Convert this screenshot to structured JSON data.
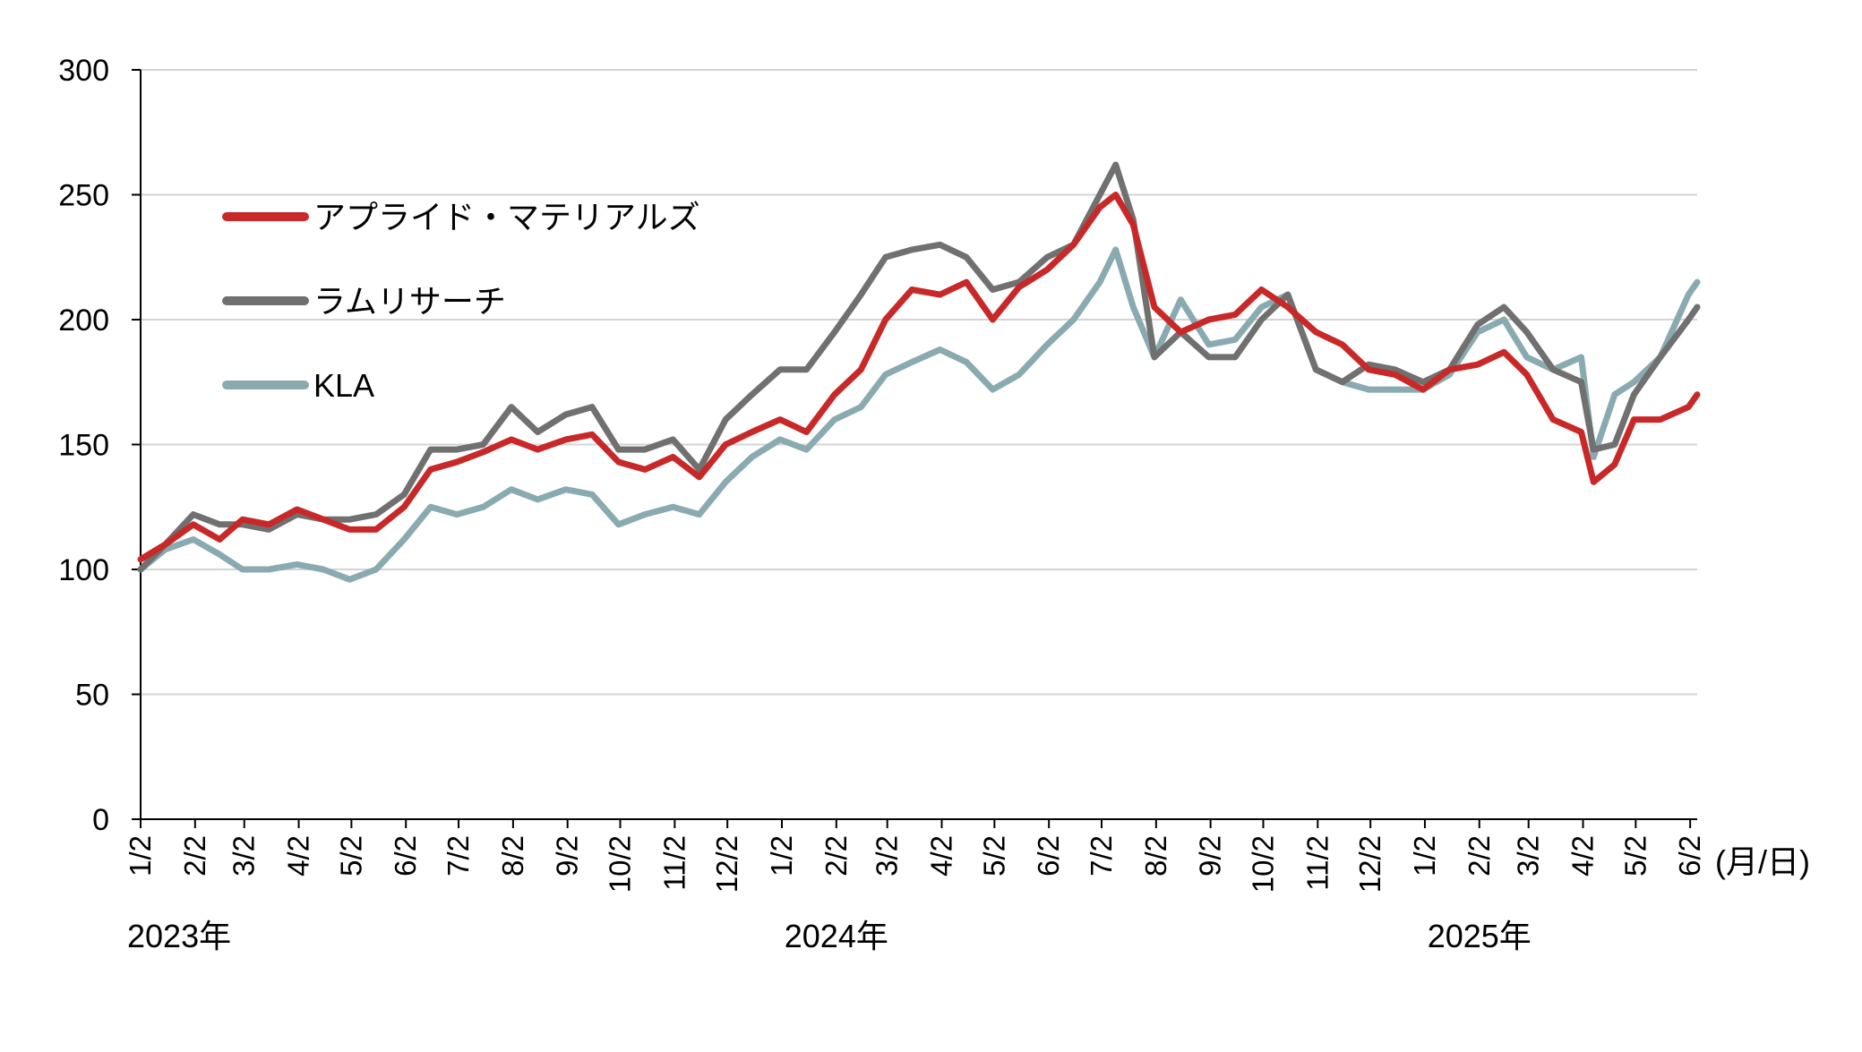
{
  "chart_data": {
    "type": "line",
    "title": "",
    "xlabel": "",
    "ylabel": "",
    "ylim": [
      0,
      300
    ],
    "yticks": [
      0,
      50,
      100,
      150,
      200,
      250,
      300
    ],
    "x_unit_label": "(月/日)",
    "grid": "horizontal",
    "legend_position": "top-left",
    "x_tick_labels": [
      "1/2",
      "2/2",
      "3/2",
      "4/2",
      "5/2",
      "6/2",
      "7/2",
      "8/2",
      "9/2",
      "10/2",
      "11/2",
      "12/2",
      "1/2",
      "2/2",
      "3/2",
      "4/2",
      "5/2",
      "6/2",
      "7/2",
      "8/2",
      "9/2",
      "10/2",
      "11/2",
      "12/2",
      "1/2",
      "2/2",
      "3/2",
      "4/2",
      "5/2",
      "6/2"
    ],
    "x_tick_dates": [
      "2023-01-02",
      "2023-02-02",
      "2023-03-02",
      "2023-04-02",
      "2023-05-02",
      "2023-06-02",
      "2023-07-02",
      "2023-08-02",
      "2023-09-02",
      "2023-10-02",
      "2023-11-02",
      "2023-12-02",
      "2024-01-02",
      "2024-02-02",
      "2024-03-02",
      "2024-04-02",
      "2024-05-02",
      "2024-06-02",
      "2024-07-02",
      "2024-08-02",
      "2024-09-02",
      "2024-10-02",
      "2024-11-02",
      "2024-12-02",
      "2025-01-02",
      "2025-02-02",
      "2025-03-02",
      "2025-04-02",
      "2025-05-02",
      "2025-06-02"
    ],
    "year_labels": [
      {
        "label": "2023年",
        "date": "2023-01-02"
      },
      {
        "label": "2024年",
        "date": "2024-02-02"
      },
      {
        "label": "2025年",
        "date": "2025-02-02"
      }
    ],
    "x": [
      "2023-01-02",
      "2023-01-16",
      "2023-02-01",
      "2023-02-16",
      "2023-03-01",
      "2023-03-16",
      "2023-04-01",
      "2023-04-16",
      "2023-05-01",
      "2023-05-16",
      "2023-06-01",
      "2023-06-16",
      "2023-07-01",
      "2023-07-16",
      "2023-08-01",
      "2023-08-16",
      "2023-09-01",
      "2023-09-16",
      "2023-10-01",
      "2023-10-16",
      "2023-11-01",
      "2023-11-16",
      "2023-12-01",
      "2023-12-16",
      "2024-01-01",
      "2024-01-16",
      "2024-02-01",
      "2024-02-16",
      "2024-03-01",
      "2024-03-16",
      "2024-04-01",
      "2024-04-16",
      "2024-05-01",
      "2024-05-16",
      "2024-06-01",
      "2024-06-16",
      "2024-07-01",
      "2024-07-10",
      "2024-07-20",
      "2024-08-01",
      "2024-08-16",
      "2024-09-01",
      "2024-09-16",
      "2024-10-01",
      "2024-10-16",
      "2024-11-01",
      "2024-11-16",
      "2024-12-01",
      "2024-12-16",
      "2025-01-01",
      "2025-01-16",
      "2025-02-01",
      "2025-02-16",
      "2025-03-01",
      "2025-03-16",
      "2025-04-01",
      "2025-04-08",
      "2025-04-20",
      "2025-05-01",
      "2025-05-16",
      "2025-06-01",
      "2025-06-06"
    ],
    "series": [
      {
        "name": "アプライド・マテリアルズ",
        "color": "#c82828",
        "values": [
          104,
          110,
          118,
          112,
          120,
          118,
          124,
          120,
          116,
          116,
          125,
          140,
          143,
          147,
          152,
          148,
          152,
          154,
          143,
          140,
          145,
          137,
          150,
          155,
          160,
          155,
          170,
          180,
          200,
          212,
          210,
          215,
          200,
          213,
          220,
          230,
          245,
          250,
          238,
          205,
          195,
          200,
          202,
          212,
          205,
          195,
          190,
          180,
          178,
          172,
          180,
          182,
          187,
          178,
          160,
          155,
          135,
          142,
          160,
          160,
          165,
          170
        ]
      },
      {
        "name": "ラムリサーチ",
        "color": "#707070",
        "values": [
          100,
          110,
          122,
          118,
          118,
          116,
          122,
          120,
          120,
          122,
          130,
          148,
          148,
          150,
          165,
          155,
          162,
          165,
          148,
          148,
          152,
          140,
          160,
          170,
          180,
          180,
          195,
          210,
          225,
          228,
          230,
          225,
          212,
          215,
          225,
          230,
          250,
          262,
          240,
          185,
          195,
          185,
          185,
          200,
          210,
          180,
          175,
          182,
          180,
          175,
          180,
          198,
          205,
          195,
          180,
          175,
          148,
          150,
          170,
          185,
          200,
          205
        ]
      },
      {
        "name": "KLA",
        "color": "#88aab0",
        "values": [
          100,
          108,
          112,
          106,
          100,
          100,
          102,
          100,
          96,
          100,
          112,
          125,
          122,
          125,
          132,
          128,
          132,
          130,
          118,
          122,
          125,
          122,
          135,
          145,
          152,
          148,
          160,
          165,
          178,
          183,
          188,
          183,
          172,
          178,
          190,
          200,
          215,
          228,
          205,
          185,
          208,
          190,
          192,
          205,
          210,
          180,
          175,
          172,
          172,
          172,
          178,
          195,
          200,
          185,
          180,
          185,
          145,
          170,
          175,
          185,
          210,
          215
        ]
      }
    ]
  }
}
